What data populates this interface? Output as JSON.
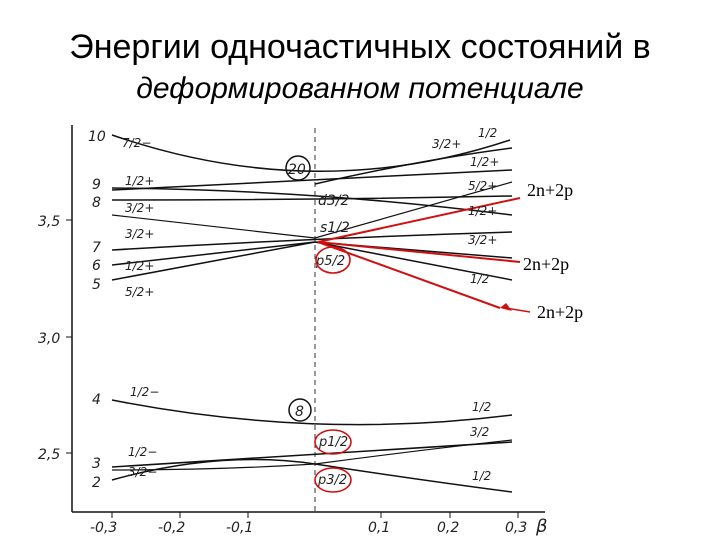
{
  "title": {
    "line1": "Энергии одночастичных состояний в",
    "line2": "деформированном потенциале"
  },
  "chart_data": {
    "type": "line",
    "xlabel": "β",
    "x_ticks": [
      "-0,3",
      "-0,2",
      "-0,1",
      "0,1",
      "0,2",
      "0,3"
    ],
    "y_ticks": [
      "3,5",
      "3,0",
      "2,5"
    ],
    "shells": [
      "20",
      "8"
    ],
    "spherical_states": [
      "d3/2",
      "s1/2",
      "p5/2",
      "p1/2",
      "p3/2"
    ],
    "left_numbers": [
      "10",
      "9",
      "8",
      "7",
      "6",
      "5",
      "4",
      "3",
      "2"
    ],
    "left_omega": [
      "7/2−",
      "1/2+",
      "3/2+",
      "3/2+",
      "1/2+",
      "5/2+",
      "1/2−",
      "1/2−",
      "3/2−"
    ],
    "right_omega": [
      "1/2",
      "3/2+",
      "1/2+",
      "5/2+",
      "1/2+",
      "3/2+",
      "1/2",
      "1/2",
      "3/2",
      "1/2"
    ],
    "annotations": [
      "2n+2p",
      "2n+2p",
      "2n+2p"
    ]
  }
}
